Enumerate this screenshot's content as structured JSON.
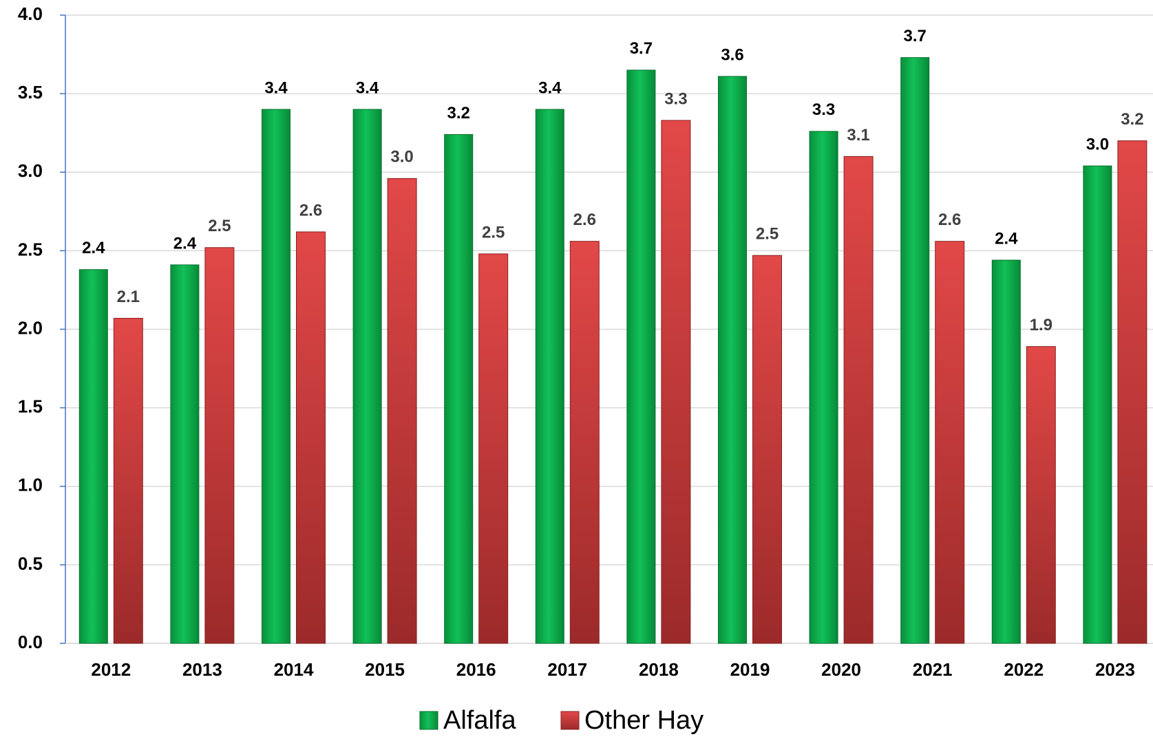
{
  "chart_data": {
    "type": "bar",
    "categories": [
      "2012",
      "2013",
      "2014",
      "2015",
      "2016",
      "2017",
      "2018",
      "2019",
      "2020",
      "2021",
      "2022",
      "2023"
    ],
    "series": [
      {
        "name": "Alfalfa",
        "color": "#0fae4c",
        "values": [
          2.38,
          2.41,
          3.4,
          3.4,
          3.24,
          3.4,
          3.65,
          3.61,
          3.26,
          3.73,
          2.44,
          3.04
        ],
        "value_labels": [
          "2.4",
          "2.4",
          "3.4",
          "3.4",
          "3.2",
          "3.4",
          "3.7",
          "3.6",
          "3.3",
          "3.7",
          "2.4",
          "3.0"
        ]
      },
      {
        "name": "Other Hay",
        "color": "#d43a3a",
        "values": [
          2.07,
          2.52,
          2.62,
          2.96,
          2.48,
          2.56,
          3.33,
          2.47,
          3.1,
          2.56,
          1.89,
          3.2
        ],
        "value_labels": [
          "2.1",
          "2.5",
          "2.6",
          "3.0",
          "2.5",
          "2.6",
          "3.3",
          "2.5",
          "3.1",
          "2.6",
          "1.9",
          "3.2"
        ]
      }
    ],
    "ylim": [
      0,
      4
    ],
    "yticks": [
      {
        "value": 0,
        "label": "0.0"
      },
      0.5,
      {
        "value": 1,
        "label": "1.0"
      },
      1.5,
      {
        "value": 2,
        "label": "2.0"
      },
      2.5,
      {
        "value": 3,
        "label": "3.0"
      },
      3.5,
      {
        "value": 4,
        "label": "4.0"
      }
    ],
    "grid": true,
    "legend": "bottom"
  }
}
